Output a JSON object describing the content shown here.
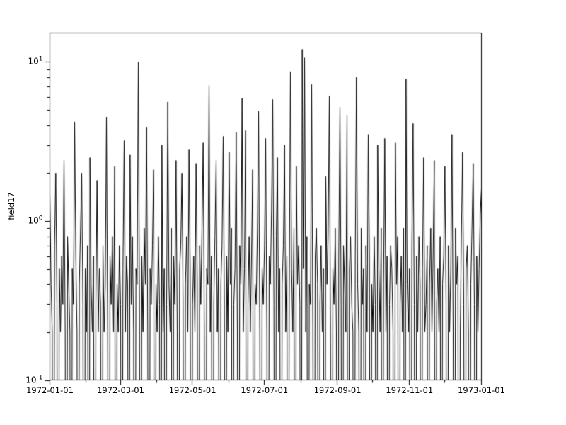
{
  "figure": {
    "background": "#ffffff",
    "frame_color": "#000000"
  },
  "chart_data": {
    "type": "line",
    "title": "",
    "xlabel": "",
    "ylabel": "field17",
    "x_scale": "time",
    "y_scale": "log",
    "grid": false,
    "legend": null,
    "line_color": "#000000",
    "x_start": "1972-01-01",
    "x_end": "1973-01-01",
    "x_tick_labels": [
      "1972-01-01",
      "1972-03-01",
      "1972-05-01",
      "1972-07-01",
      "1972-09-01",
      "1972-11-01",
      "1973-01-01"
    ],
    "x_minor_ticks": [
      "1972-02-01",
      "1972-04-01",
      "1972-06-01",
      "1972-08-01",
      "1972-10-01",
      "1972-12-01"
    ],
    "y_tick_labels": [
      {
        "base": "10",
        "exp": "-1"
      },
      {
        "base": "10",
        "exp": "0"
      },
      {
        "base": "10",
        "exp": "1"
      }
    ],
    "ylim": [
      0.1,
      15.2
    ],
    "values": [
      1.5,
      0.4,
      0.2,
      0,
      0.7,
      2.0,
      0.3,
      0,
      0.5,
      0.2,
      0.6,
      0.3,
      2.4,
      0.2,
      0,
      0.8,
      0.4,
      0.2,
      0,
      0.5,
      0.3,
      4.2,
      0.6,
      0.2,
      0,
      0.4,
      0.9,
      2.0,
      0.3,
      0,
      0.5,
      0.2,
      0.7,
      0,
      2.5,
      0.4,
      0.2,
      0.6,
      0,
      0.3,
      1.8,
      0.2,
      0.5,
      0.3,
      0,
      0.7,
      0.2,
      0.4,
      4.5,
      0.2,
      0,
      0.6,
      0.3,
      0.8,
      0.2,
      2.2,
      0,
      0.4,
      0.2,
      0.7,
      0.3,
      0,
      0.5,
      3.2,
      0.2,
      0.6,
      0.4,
      0,
      2.6,
      0.3,
      0.8,
      0.2,
      0,
      0.5,
      0.4,
      10.0,
      0.3,
      0,
      0.6,
      0.2,
      0.9,
      0.4,
      3.9,
      0.2,
      0,
      0.5,
      0.3,
      0.7,
      2.1,
      0,
      0.4,
      0.2,
      0.8,
      0.3,
      0,
      3.0,
      0.2,
      0.5,
      0,
      0.3,
      5.6,
      0.4,
      0.2,
      0.9,
      0,
      0.6,
      0.3,
      2.4,
      0.2,
      0,
      0.5,
      0.7,
      2.0,
      0.3,
      0,
      0.4,
      0.8,
      0.2,
      2.8,
      0.5,
      0,
      0.3,
      0.6,
      0.2,
      2.3,
      0.4,
      0,
      0.7,
      0.3,
      0.9,
      3.1,
      0.2,
      0,
      0.5,
      0.4,
      7.1,
      0.2,
      0.6,
      0,
      0.3,
      0.8,
      2.4,
      0.2,
      0.5,
      0,
      0.4,
      0.7,
      3.4,
      0.3,
      0,
      0.6,
      0.2,
      2.7,
      0.4,
      0.9,
      0,
      0.3,
      0.5,
      3.6,
      0.2,
      0,
      0.7,
      0.4,
      5.9,
      0.2,
      0.5,
      3.7,
      0,
      0.3,
      0.8,
      0.2,
      0.6,
      2.1,
      0,
      0.4,
      0.3,
      0.9,
      4.9,
      0.2,
      0,
      0.5,
      0.3,
      0.7,
      3.3,
      0.2,
      0,
      0.6,
      0.4,
      1.2,
      5.8,
      0.3,
      0,
      0.8,
      2.5,
      0.2,
      0.5,
      0,
      0.4,
      0.7,
      3.0,
      0.2,
      0.6,
      0,
      0.3,
      8.7,
      0.5,
      0.2,
      0.9,
      0,
      2.2,
      0.4,
      0.7,
      0.3,
      0,
      12.0,
      0.5,
      10.6,
      0.2,
      0.8,
      0,
      0.4,
      0.3,
      7.2,
      0.2,
      0,
      0.6,
      0.9,
      0.4,
      0,
      0.3,
      0.7,
      0.2,
      0.5,
      0,
      1.9,
      0.4,
      0.8,
      6.1,
      0.2,
      0,
      0.5,
      0.3,
      0.9,
      0.2,
      0,
      0.6,
      5.2,
      0.3,
      0,
      0.7,
      0.4,
      0.2,
      4.6,
      0,
      0.5,
      0.8,
      0.3,
      0.2,
      0,
      0.6,
      8.0,
      0.4,
      0.2,
      0,
      0.9,
      0.3,
      0.5,
      0,
      0.7,
      0.2,
      3.5,
      0.6,
      0,
      0.4,
      0.2,
      0.8,
      0.3,
      0,
      3.0,
      0.5,
      0.2,
      0.9,
      0,
      0.4,
      3.3,
      0.2,
      0.6,
      0,
      0.3,
      0.7,
      0.5,
      0.2,
      0,
      3.1,
      0.4,
      0.8,
      0,
      0.3,
      0.6,
      0.2,
      0.9,
      0,
      7.8,
      0.4,
      0.2,
      0.5,
      0,
      0.7,
      4.1,
      0.3,
      0,
      0.6,
      0.2,
      0.8,
      0.4,
      0,
      0.5,
      2.5,
      0.2,
      0.3,
      0.7,
      0,
      0.4,
      0.9,
      0.2,
      0.6,
      2.4,
      0,
      0.3,
      0.5,
      0.2,
      0.8,
      0,
      0.4,
      0.6,
      2.2,
      0.3,
      0,
      0.7,
      0.2,
      0.5,
      3.5,
      0.2,
      0,
      0.9,
      0.4,
      0.6,
      0,
      0.2,
      0.8,
      2.7,
      0.3,
      0,
      0.5,
      0.7,
      0.2,
      0,
      0.4,
      0.9,
      2.3,
      0.3,
      0,
      0.6,
      0.2,
      0.5,
      1.1,
      1.6
    ]
  }
}
